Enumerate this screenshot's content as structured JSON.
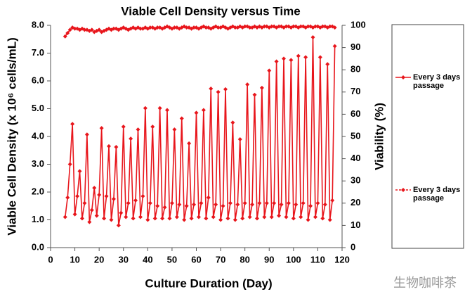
{
  "chart_data": {
    "type": "line",
    "title": "Viable Cell Density versus Time",
    "xlabel": "Culture Duration (Day)",
    "ylabel": "Viable Cell Density (x 10⁶ cells/mL)",
    "y2label": "Viability (%)",
    "watermark": "生物咖啡茶",
    "xlim": [
      0,
      120
    ],
    "xticks": [
      0,
      10,
      20,
      30,
      40,
      50,
      60,
      70,
      80,
      90,
      100,
      110,
      120
    ],
    "ylim": [
      0,
      8
    ],
    "yticks": [
      {
        "value": 0,
        "label": "0.0"
      },
      {
        "value": 1,
        "label": "1.0"
      },
      {
        "value": 2,
        "label": "2.0"
      },
      {
        "value": 3,
        "label": "3.0"
      },
      {
        "value": 4,
        "label": "4.0"
      },
      {
        "value": 5,
        "label": "5.0"
      },
      {
        "value": 6,
        "label": "6.0"
      },
      {
        "value": 7,
        "label": "7.0"
      },
      {
        "value": 8,
        "label": "8.0"
      }
    ],
    "y2lim": [
      0,
      100
    ],
    "y2ticks": [
      0,
      10,
      20,
      30,
      40,
      50,
      60,
      70,
      80,
      90,
      100
    ],
    "x": [
      6,
      7,
      8,
      9,
      10,
      11,
      12,
      13,
      14,
      15,
      16,
      17,
      18,
      19,
      20,
      21,
      22,
      23,
      24,
      25,
      26,
      27,
      28,
      29,
      30,
      31,
      32,
      33,
      34,
      35,
      36,
      37,
      38,
      39,
      40,
      41,
      42,
      43,
      44,
      45,
      46,
      47,
      48,
      49,
      50,
      51,
      52,
      53,
      54,
      55,
      56,
      57,
      58,
      59,
      60,
      61,
      62,
      63,
      64,
      65,
      66,
      67,
      68,
      69,
      70,
      71,
      72,
      73,
      74,
      75,
      76,
      77,
      78,
      79,
      80,
      81,
      82,
      83,
      84,
      85,
      86,
      87,
      88,
      89,
      90,
      91,
      92,
      93,
      94,
      95,
      96,
      97,
      98,
      99,
      100,
      101,
      102,
      103,
      104,
      105,
      106,
      107,
      108,
      109,
      110,
      111,
      112,
      113,
      114,
      115,
      116,
      117
    ],
    "series": [
      {
        "name": "Every 3 days passage",
        "color": "#e8161c",
        "dashed": false,
        "values": [
          1.1,
          1.8,
          3.0,
          4.45,
          1.2,
          1.85,
          2.75,
          1.05,
          1.6,
          4.07,
          0.92,
          1.35,
          2.15,
          1.15,
          1.9,
          4.3,
          1.05,
          1.85,
          3.65,
          1.0,
          1.75,
          3.62,
          0.8,
          1.25,
          4.35,
          1.1,
          1.6,
          3.92,
          1.05,
          1.7,
          4.25,
          1.1,
          1.85,
          5.02,
          1.0,
          1.6,
          4.35,
          1.05,
          1.5,
          5.02,
          1.05,
          1.45,
          4.95,
          1.05,
          1.6,
          4.25,
          1.1,
          1.55,
          4.65,
          1.0,
          1.5,
          3.75,
          1.05,
          1.55,
          4.85,
          1.1,
          1.6,
          4.95,
          1.05,
          1.8,
          5.72,
          1.1,
          1.55,
          5.6,
          1.0,
          1.5,
          5.7,
          1.05,
          1.6,
          4.5,
          1.0,
          1.55,
          3.9,
          1.05,
          1.6,
          5.87,
          1.1,
          1.55,
          5.5,
          1.05,
          1.6,
          5.75,
          1.1,
          1.6,
          6.37,
          1.1,
          1.6,
          6.7,
          1.15,
          1.55,
          6.8,
          1.1,
          1.6,
          6.75,
          1.05,
          1.55,
          6.9,
          1.1,
          1.6,
          6.85,
          1.0,
          1.5,
          7.57,
          1.1,
          1.6,
          6.85,
          1.05,
          1.55,
          6.6,
          1.0,
          1.7,
          7.25
        ]
      },
      {
        "name": "Every 3 days passage",
        "color": "#e8161c",
        "dashed": true,
        "axis": "y2",
        "values": [
          95,
          96.5,
          98,
          99,
          98.5,
          98.5,
          98,
          98.5,
          98,
          98,
          97.5,
          98,
          97,
          97.5,
          98,
          97,
          97.5,
          98,
          98.5,
          98,
          98.5,
          98.5,
          98,
          98.5,
          99,
          98.5,
          98,
          98.5,
          99,
          98.5,
          99,
          98.5,
          98.5,
          99,
          98.5,
          99,
          99,
          98.5,
          99,
          99,
          98.5,
          99,
          99.5,
          99,
          98.5,
          99,
          99,
          98.5,
          99,
          99.5,
          99,
          99,
          98.5,
          99,
          99,
          98.5,
          99,
          99.5,
          99,
          99,
          98.5,
          99,
          99.5,
          99,
          99,
          99.5,
          99,
          98.5,
          99,
          99.5,
          99,
          99,
          99.5,
          99,
          99.5,
          99.5,
          99,
          99,
          99.5,
          99,
          99.5,
          99,
          99.5,
          99.5,
          99,
          99.5,
          99.5,
          99,
          99.5,
          99.5,
          99,
          99.5,
          99.5,
          99,
          99.5,
          99.5,
          99,
          99.5,
          99.5,
          99,
          99.5,
          99.5,
          99,
          99.5,
          99.5,
          99,
          99.5,
          99.5,
          99,
          99.5,
          99.5,
          99
        ]
      }
    ]
  }
}
